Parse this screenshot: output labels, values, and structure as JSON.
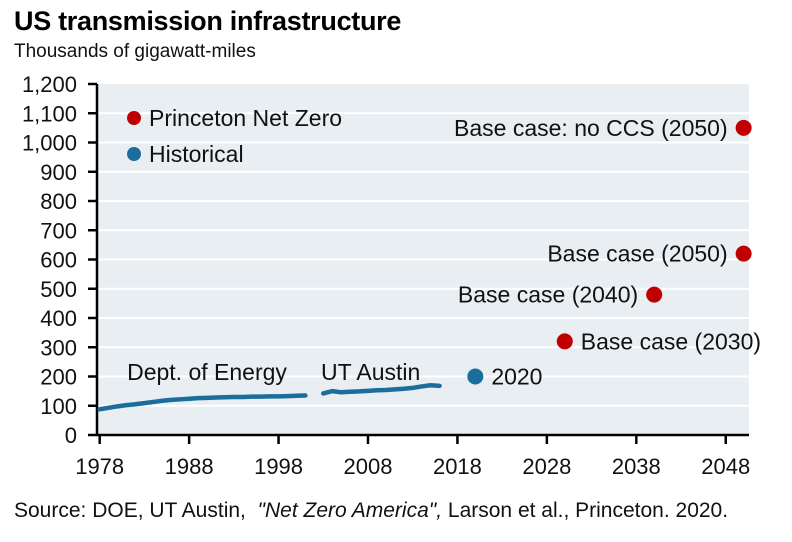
{
  "title": "US transmission infrastructure",
  "subtitle": "Thousands of gigawatt-miles",
  "source": {
    "prefix": "Source: DOE, UT Austin,  ",
    "italic": "\"Net Zero America\",",
    "suffix": " Larson et al., Princeton. 2020."
  },
  "colors": {
    "princeton_red": "#c00000",
    "historical_blue": "#1b6e9c",
    "plot_bg": "#e8eef1",
    "gridline": "#ffffff",
    "axis": "#000000"
  },
  "legend": [
    {
      "label": "Princeton Net Zero",
      "color_key": "princeton_red"
    },
    {
      "label": "Historical",
      "color_key": "historical_blue"
    }
  ],
  "chart_data": {
    "type": "line+scatter",
    "title": "US transmission infrastructure",
    "ylabel": "Thousands of gigawatt-miles",
    "xlabel": "",
    "xlim": [
      1977.7,
      2050.6
    ],
    "ylim": [
      0,
      1200
    ],
    "x_ticks": [
      1978,
      1988,
      1998,
      2008,
      2018,
      2028,
      2038,
      2048
    ],
    "y_ticks": [
      0,
      100,
      200,
      300,
      400,
      500,
      600,
      700,
      800,
      900,
      1000,
      1100,
      1200
    ],
    "grid": "horizontal white gridlines on shaded panel",
    "legend_position": "top-left inside plot",
    "series": [
      {
        "name": "Historical - Dept. of Energy",
        "type": "line",
        "color_key": "historical_blue",
        "points": [
          [
            1978,
            88
          ],
          [
            1979,
            93
          ],
          [
            1980,
            98
          ],
          [
            1981,
            102
          ],
          [
            1982,
            105
          ],
          [
            1983,
            109
          ],
          [
            1984,
            113
          ],
          [
            1985,
            117
          ],
          [
            1986,
            120
          ],
          [
            1987,
            122
          ],
          [
            1988,
            124
          ],
          [
            1989,
            126
          ],
          [
            1990,
            127
          ],
          [
            1991,
            128
          ],
          [
            1992,
            129
          ],
          [
            1993,
            130
          ],
          [
            1994,
            130
          ],
          [
            1995,
            131
          ],
          [
            1996,
            131
          ],
          [
            1997,
            132
          ],
          [
            1998,
            132
          ],
          [
            1999,
            133
          ],
          [
            2000,
            134
          ],
          [
            2001,
            135
          ]
        ]
      },
      {
        "name": "Historical - UT Austin",
        "type": "line",
        "color_key": "historical_blue",
        "points": [
          [
            2003,
            142
          ],
          [
            2004,
            150
          ],
          [
            2005,
            146
          ],
          [
            2006,
            148
          ],
          [
            2007,
            149
          ],
          [
            2008,
            151
          ],
          [
            2009,
            153
          ],
          [
            2010,
            154
          ],
          [
            2011,
            156
          ],
          [
            2012,
            158
          ],
          [
            2013,
            161
          ],
          [
            2014,
            166
          ],
          [
            2015,
            170
          ],
          [
            2016,
            168
          ]
        ]
      },
      {
        "name": "Historical - 2020",
        "type": "scatter",
        "color_key": "historical_blue",
        "points": [
          [
            2020,
            200
          ]
        ]
      },
      {
        "name": "Princeton Net Zero",
        "type": "scatter",
        "color_key": "princeton_red",
        "points": [
          [
            2030,
            320
          ],
          [
            2040,
            480
          ],
          [
            2050,
            620
          ],
          [
            2050,
            1050
          ]
        ]
      }
    ],
    "point_labels": [
      {
        "text": "2020",
        "year": 2020,
        "value": 200,
        "side": "right"
      },
      {
        "text": "Base case (2030)",
        "year": 2030,
        "value": 320,
        "side": "right"
      },
      {
        "text": "Base case (2040)",
        "year": 2040,
        "value": 480,
        "side": "left"
      },
      {
        "text": "Base case (2050)",
        "year": 2050,
        "value": 620,
        "side": "left"
      },
      {
        "text": "Base case: no CCS (2050)",
        "year": 2050,
        "value": 1050,
        "side": "left"
      }
    ],
    "line_labels": [
      {
        "text": "Dept. of Energy",
        "year": 1990,
        "value": 215
      },
      {
        "text": "UT Austin",
        "year": 2008.3,
        "value": 215
      }
    ]
  }
}
